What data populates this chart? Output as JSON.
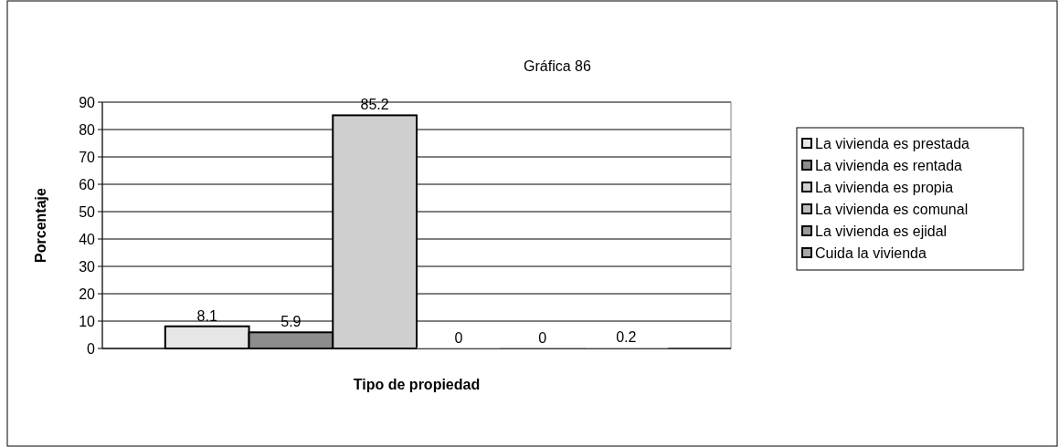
{
  "chart_data": {
    "type": "bar",
    "title": "Gráfica 86",
    "xlabel": "Tipo de propiedad",
    "ylabel": "Porcentaje",
    "categories": [
      null
    ],
    "series": [
      {
        "name": "La vivienda es prestada",
        "color": "#e6e6e6",
        "values": [
          8.1
        ]
      },
      {
        "name": "La vivienda es rentada",
        "color": "#8c8c8c",
        "values": [
          5.9
        ]
      },
      {
        "name": "La vivienda es propia",
        "color": "#cfcfcf",
        "values": [
          85.2
        ]
      },
      {
        "name": "La vivienda es comunal",
        "color": "#bdbdbd",
        "values": [
          0
        ]
      },
      {
        "name": "La vivienda es ejidal",
        "color": "#9a9a9a",
        "values": [
          0
        ]
      },
      {
        "name": "Cuida la vivienda",
        "color": "#a6a6a6",
        "values": [
          0.2
        ]
      }
    ],
    "ylim": [
      0,
      90
    ],
    "yticks": [
      0,
      10,
      20,
      30,
      40,
      50,
      60,
      70,
      80,
      90
    ],
    "grid": "y",
    "legend": "right",
    "data_labels": true
  }
}
